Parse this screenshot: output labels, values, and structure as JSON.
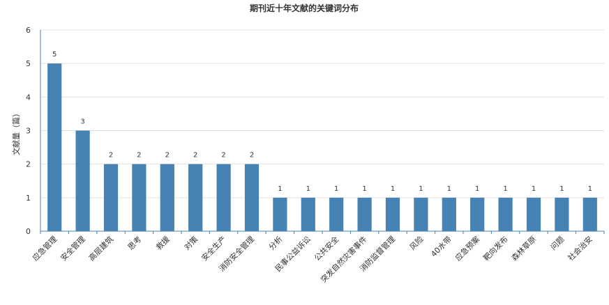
{
  "chart_data": {
    "type": "bar",
    "title": "期刊近十年文献的关键词分布",
    "ylabel": "文献量（篇）",
    "xlabel": "",
    "ylim": [
      0,
      6
    ],
    "yticks": [
      0,
      1,
      2,
      3,
      4,
      5,
      6
    ],
    "grid": true,
    "legend": "none",
    "bar_color": "#4682b4",
    "categories": [
      "应急管理",
      "安全管理",
      "高层建筑",
      "思考",
      "救援",
      "对策",
      "安全生产",
      "消防安全管理",
      "分析",
      "民事公益诉讼",
      "公共安全",
      "突发自然灾害事件",
      "消防监督管理",
      "风险",
      "40水带",
      "应急预案",
      "靶向发布",
      "森林草原",
      "问题",
      "社会治安"
    ],
    "values": [
      5,
      3,
      2,
      2,
      2,
      2,
      2,
      2,
      1,
      1,
      1,
      1,
      1,
      1,
      1,
      1,
      1,
      1,
      1,
      1
    ]
  }
}
